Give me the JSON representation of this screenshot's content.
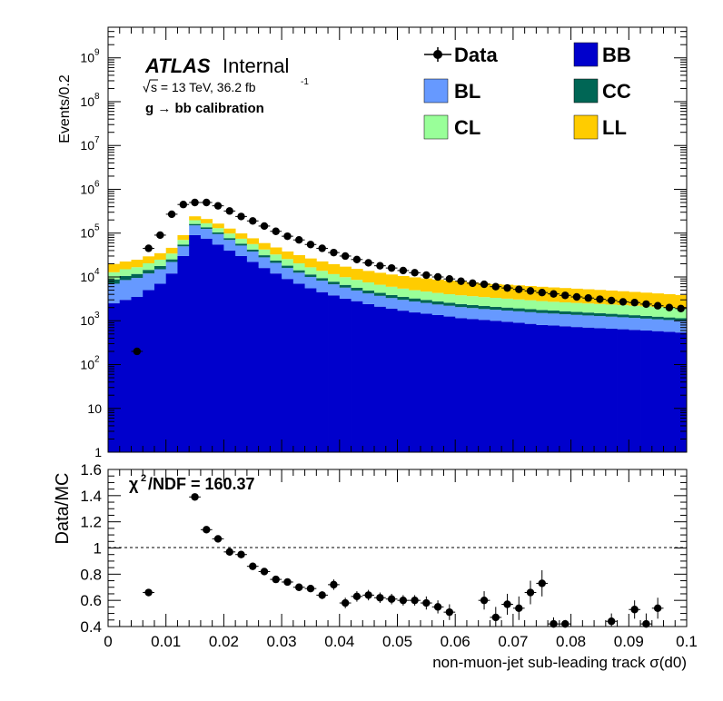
{
  "upper": {
    "ylabel": "Events/0.2",
    "atlas_bold": "ATLAS",
    "atlas_rest": "Internal",
    "sqrt_label": "s = 13 TeV, 36.2 fb",
    "lumi_exp": "-1",
    "calib_text": "g  → bb calibration",
    "ytick_labels": [
      "1",
      "10",
      "10",
      "10",
      "10",
      "10",
      "10",
      "10",
      "10",
      "10"
    ],
    "ytick_exps": [
      "",
      "",
      "2",
      "3",
      "4",
      "5",
      "6",
      "7",
      "8",
      "9"
    ]
  },
  "lower": {
    "ylabel": "Data/MC",
    "chi2_text": "/NDF = 160.37",
    "chi2_sym": "χ",
    "chi2_exp": "2",
    "ytick_labels": [
      "0.4",
      "0.6",
      "0.8",
      "1",
      "1.2",
      "1.4",
      "1.6"
    ],
    "xtick_labels": [
      "0",
      "0.01",
      "0.02",
      "0.03",
      "0.04",
      "0.05",
      "0.06",
      "0.07",
      "0.08",
      "0.09",
      "0.1"
    ],
    "xlabel": "non-muon-jet sub-leading track σ(d0)"
  },
  "legend": {
    "data": "Data",
    "bb": "BB",
    "bl": "BL",
    "cc": "CC",
    "cl": "CL",
    "ll": "LL"
  },
  "colors": {
    "BB": "#0000cc",
    "BL": "#6699ff",
    "CC": "#006655",
    "CL": "#99ff99",
    "LL": "#ffcc00",
    "data": "#000000"
  },
  "chart_data": [
    {
      "type": "bar",
      "stacked": true,
      "ylog": true,
      "ylim": [
        1,
        5000000000
      ],
      "xlim": [
        0,
        0.1
      ],
      "ylabel": "Events/0.2",
      "x_bin_width": 0.002,
      "x_bin_centers": [
        0.001,
        0.003,
        0.005,
        0.007,
        0.009,
        0.011,
        0.013,
        0.015,
        0.017,
        0.019,
        0.021,
        0.023,
        0.025,
        0.027,
        0.029,
        0.031,
        0.033,
        0.035,
        0.037,
        0.039,
        0.041,
        0.043,
        0.045,
        0.047,
        0.049,
        0.051,
        0.053,
        0.055,
        0.057,
        0.059,
        0.061,
        0.063,
        0.065,
        0.067,
        0.069,
        0.071,
        0.073,
        0.075,
        0.077,
        0.079,
        0.081,
        0.083,
        0.085,
        0.087,
        0.089,
        0.091,
        0.093,
        0.095,
        0.097,
        0.099
      ],
      "series": [
        {
          "name": "BB",
          "values": [
            2500,
            3000,
            3500,
            5000,
            7000,
            12000,
            30000,
            90000,
            75000,
            55000,
            40000,
            30000,
            22000,
            16000,
            12000,
            9000,
            7000,
            5500,
            4500,
            3800,
            3200,
            2800,
            2400,
            2100,
            1900,
            1700,
            1550,
            1450,
            1350,
            1250,
            1150,
            1100,
            1050,
            1000,
            950,
            900,
            850,
            800,
            780,
            750,
            720,
            700,
            680,
            660,
            640,
            620,
            600,
            580,
            560,
            540
          ]
        },
        {
          "name": "BL",
          "values": [
            4500,
            5500,
            6000,
            7000,
            8000,
            10000,
            20000,
            60000,
            50000,
            40000,
            30000,
            22000,
            16000,
            12000,
            9000,
            7000,
            5500,
            4500,
            3700,
            3000,
            2500,
            2100,
            1800,
            1600,
            1400,
            1300,
            1200,
            1100,
            1000,
            950,
            900,
            850,
            800,
            780,
            760,
            740,
            720,
            700,
            680,
            660,
            640,
            620,
            600,
            580,
            560,
            540,
            520,
            500,
            480,
            460
          ]
        },
        {
          "name": "CC",
          "values": [
            1800,
            2000,
            2200,
            2500,
            2800,
            3200,
            5000,
            12000,
            11000,
            9000,
            7000,
            5500,
            4200,
            3300,
            2600,
            2100,
            1700,
            1400,
            1200,
            1000,
            880,
            780,
            700,
            630,
            570,
            520,
            480,
            440,
            410,
            380,
            360,
            340,
            320,
            300,
            290,
            280,
            270,
            260,
            250,
            240,
            230,
            220,
            210,
            200,
            190,
            180,
            170,
            160,
            150,
            140
          ]
        },
        {
          "name": "CL",
          "values": [
            4000,
            4500,
            5000,
            6000,
            7000,
            9000,
            15000,
            35000,
            32000,
            26000,
            21000,
            17000,
            14000,
            11000,
            9000,
            7500,
            6200,
            5200,
            4400,
            3800,
            3300,
            2900,
            2600,
            2300,
            2100,
            1900,
            1750,
            1650,
            1550,
            1450,
            1400,
            1350,
            1300,
            1250,
            1200,
            1150,
            1100,
            1050,
            1000,
            980,
            960,
            940,
            920,
            900,
            880,
            860,
            840,
            820,
            800,
            780
          ]
        },
        {
          "name": "LL",
          "values": [
            7000,
            7500,
            8000,
            9000,
            10000,
            12000,
            20000,
            45000,
            42000,
            35000,
            29000,
            24000,
            20000,
            17000,
            14500,
            12500,
            11000,
            9800,
            8800,
            8000,
            7300,
            6700,
            6200,
            5800,
            5400,
            5100,
            4800,
            4600,
            4400,
            4200,
            4000,
            3850,
            3700,
            3550,
            3450,
            3350,
            3250,
            3150,
            3050,
            2950,
            2850,
            2750,
            2650,
            2550,
            2450,
            2350,
            2250,
            2150,
            2050,
            1950
          ]
        }
      ],
      "data_points": {
        "name": "Data",
        "x": [
          0.005,
          0.007,
          0.009,
          0.011,
          0.013,
          0.015,
          0.017,
          0.019,
          0.021,
          0.023,
          0.025,
          0.027,
          0.029,
          0.031,
          0.033,
          0.035,
          0.037,
          0.039,
          0.041,
          0.043,
          0.045,
          0.047,
          0.049,
          0.051,
          0.053,
          0.055,
          0.057,
          0.059,
          0.061,
          0.063,
          0.065,
          0.067,
          0.069,
          0.071,
          0.073,
          0.075,
          0.077,
          0.079,
          0.081,
          0.083,
          0.085,
          0.087,
          0.089,
          0.091,
          0.093,
          0.095,
          0.097,
          0.099
        ],
        "y": [
          200,
          45000,
          90000,
          270000,
          450000,
          500000,
          500000,
          420000,
          320000,
          240000,
          190000,
          145000,
          110000,
          85000,
          70000,
          55000,
          45000,
          36000,
          30000,
          25000,
          21000,
          18000,
          16000,
          14000,
          12500,
          11000,
          10000,
          9000,
          8000,
          7200,
          6800,
          6000,
          5600,
          5200,
          4800,
          4400,
          4100,
          3800,
          3500,
          3300,
          3100,
          2900,
          2700,
          2600,
          2400,
          2200,
          2000,
          1900
        ]
      }
    },
    {
      "type": "scatter",
      "xlim": [
        0,
        0.1
      ],
      "ylim": [
        0.4,
        1.6
      ],
      "ylabel": "Data/MC",
      "xlabel": "non-muon-jet sub-leading track σ(d0)",
      "reference_line": 1.0,
      "x": [
        0.007,
        0.015,
        0.017,
        0.019,
        0.021,
        0.023,
        0.025,
        0.027,
        0.029,
        0.031,
        0.033,
        0.035,
        0.037,
        0.039,
        0.041,
        0.043,
        0.045,
        0.047,
        0.049,
        0.051,
        0.053,
        0.055,
        0.057,
        0.059,
        0.065,
        0.067,
        0.069,
        0.071,
        0.073,
        0.075,
        0.077,
        0.079,
        0.087,
        0.091,
        0.093,
        0.095
      ],
      "y": [
        0.66,
        1.39,
        1.14,
        1.07,
        0.97,
        0.95,
        0.86,
        0.82,
        0.76,
        0.74,
        0.7,
        0.69,
        0.64,
        0.72,
        0.58,
        0.63,
        0.64,
        0.62,
        0.61,
        0.6,
        0.6,
        0.58,
        0.55,
        0.51,
        0.6,
        0.47,
        0.57,
        0.54,
        0.66,
        0.73,
        0.42,
        0.42,
        0.44,
        0.53,
        0.42,
        0.54
      ],
      "yerr": [
        0.01,
        0.01,
        0.01,
        0.01,
        0.01,
        0.01,
        0.01,
        0.01,
        0.01,
        0.01,
        0.02,
        0.02,
        0.03,
        0.04,
        0.04,
        0.04,
        0.04,
        0.04,
        0.04,
        0.04,
        0.04,
        0.05,
        0.05,
        0.06,
        0.07,
        0.08,
        0.08,
        0.09,
        0.09,
        0.1,
        0.05,
        0.03,
        0.06,
        0.07,
        0.08,
        0.08
      ]
    }
  ]
}
